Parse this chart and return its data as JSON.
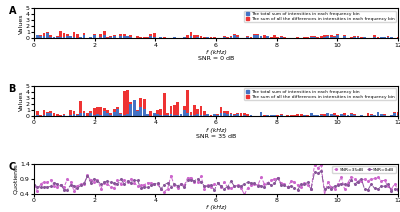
{
  "snr_label_A": "SNR = 0 dB",
  "snr_label_B": "SNR = 35 dB",
  "xlabel": "f (kHz)",
  "ylabel_AB": "Values",
  "ylabel_C": "Quotients",
  "xlim": [
    0,
    12
  ],
  "ylim_A": [
    0,
    5
  ],
  "ylim_B": [
    0,
    5
  ],
  "ylim_C": [
    0.4,
    1.4
  ],
  "yticks_AB": [
    0,
    1,
    2,
    3,
    4,
    5
  ],
  "yticks_C": [
    0.4,
    0.9,
    1.4
  ],
  "xticks": [
    0,
    2,
    4,
    6,
    8,
    10,
    12
  ],
  "color_blue": "#4472C4",
  "color_red": "#EE3333",
  "color_snr35": "#CC66CC",
  "color_snr0": "#885599",
  "legend_label_blue": "The total sum of intensities in each frequency bin",
  "legend_label_red": "The sum of all the differences in intensities in each frequency bin",
  "legend_label_snr35": "SNR=35dB",
  "legend_label_snr0": "SNR=0dB",
  "n_bins": 110,
  "background": "#FFFFFF"
}
